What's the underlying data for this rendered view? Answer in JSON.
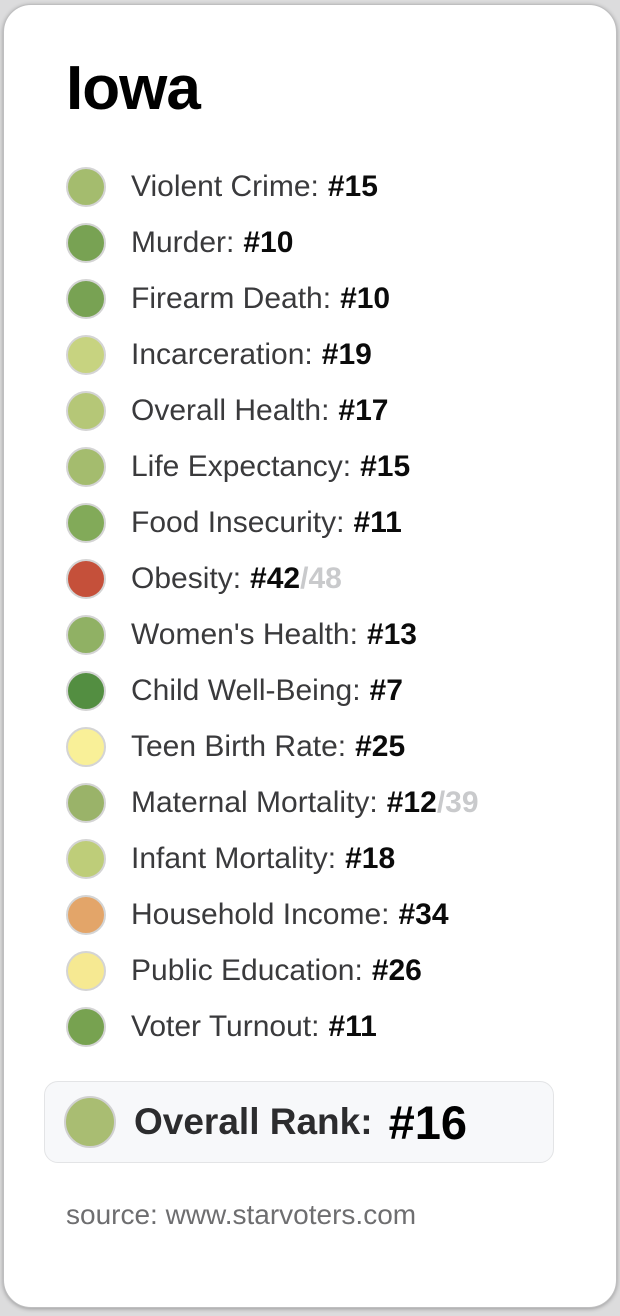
{
  "page": {
    "background": "#dcdcdd",
    "card_background": "#ffffff"
  },
  "title": "Iowa",
  "metrics": [
    {
      "label": "Violent Crime:",
      "rank": "#15",
      "denominator": "",
      "color": "#a4bc6e"
    },
    {
      "label": "Murder:",
      "rank": "#10",
      "denominator": "",
      "color": "#78a253"
    },
    {
      "label": "Firearm Death:",
      "rank": "#10",
      "denominator": "",
      "color": "#78a253"
    },
    {
      "label": "Incarceration:",
      "rank": "#19",
      "denominator": "",
      "color": "#c7d380"
    },
    {
      "label": "Overall Health:",
      "rank": "#17",
      "denominator": "",
      "color": "#b5c777"
    },
    {
      "label": "Life Expectancy:",
      "rank": "#15",
      "denominator": "",
      "color": "#a4bc6e"
    },
    {
      "label": "Food Insecurity:",
      "rank": "#11",
      "denominator": "",
      "color": "#82aa59"
    },
    {
      "label": "Obesity:",
      "rank": "#42",
      "denominator": "/48",
      "color": "#c5503a"
    },
    {
      "label": "Women's Health:",
      "rank": "#13",
      "denominator": "",
      "color": "#90b164"
    },
    {
      "label": "Child Well-Being:",
      "rank": "#7",
      "denominator": "",
      "color": "#538e41"
    },
    {
      "label": "Teen Birth Rate:",
      "rank": "#25",
      "denominator": "",
      "color": "#f9f098"
    },
    {
      "label": "Maternal Mortality:",
      "rank": "#12",
      "denominator": "/39",
      "color": "#9ab369"
    },
    {
      "label": "Infant Mortality:",
      "rank": "#18",
      "denominator": "",
      "color": "#becd79"
    },
    {
      "label": "Household Income:",
      "rank": "#34",
      "denominator": "",
      "color": "#e3a569"
    },
    {
      "label": "Public Education:",
      "rank": "#26",
      "denominator": "",
      "color": "#f6e992"
    },
    {
      "label": "Voter Turnout:",
      "rank": "#11",
      "denominator": "",
      "color": "#77a250"
    }
  ],
  "overall": {
    "label": "Overall Rank:",
    "rank": "#16",
    "color": "#a9bd72"
  },
  "source": "source: www.starvoters.com",
  "colors": {
    "dot_ring": "#d4d4d4",
    "label_text": "#3a3a3c",
    "rank_text": "#0b0b0b",
    "denominator_text": "#c9cacc",
    "overall_box_bg": "#f7f8fa"
  }
}
